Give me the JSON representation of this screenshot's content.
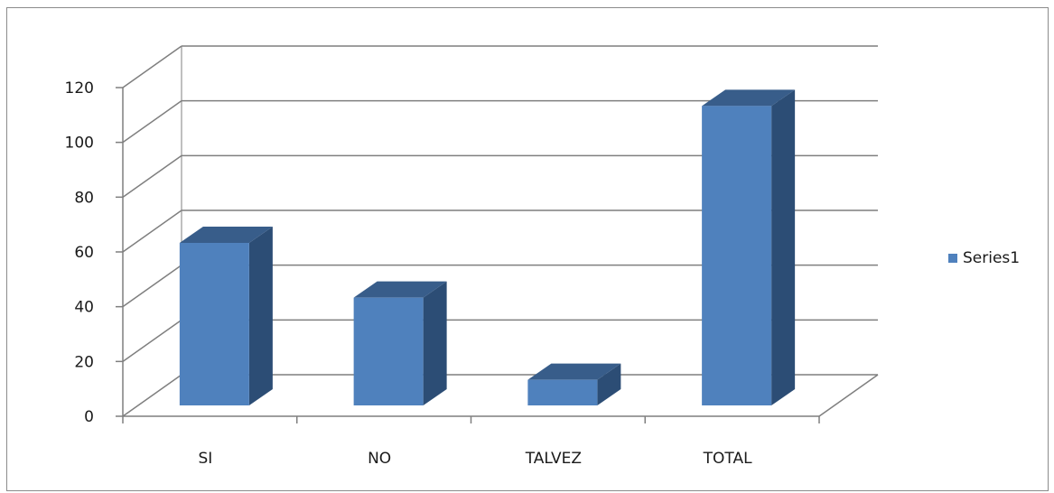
{
  "chart_data": {
    "type": "bar",
    "categories": [
      "SI",
      "NO",
      "TALVEZ",
      "TOTAL"
    ],
    "series": [
      {
        "name": "Series1",
        "values": [
          60,
          40,
          10,
          110
        ]
      }
    ],
    "ylim": [
      0,
      120
    ],
    "yticks": [
      0,
      20,
      40,
      60,
      80,
      100,
      120
    ],
    "grid": true,
    "legend": "right",
    "three_d": true
  },
  "colors": {
    "bar_front": "#4f81bd",
    "bar_top": "#385d8a",
    "bar_side": "#2c4d75",
    "grid": "#7f7f7f"
  }
}
